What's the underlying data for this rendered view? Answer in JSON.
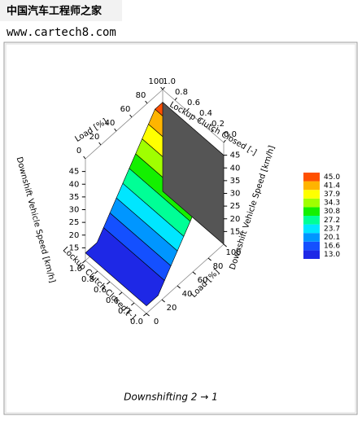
{
  "watermark": {
    "title": "中国汽车工程师之家",
    "url": "www.cartech8.com"
  },
  "chart_data": {
    "type": "surface3d",
    "caption": "Downshifting 2 → 1",
    "load_axis": {
      "title": "Load [%]",
      "lim": [
        0,
        100
      ],
      "ticks": [
        0,
        20,
        40,
        60,
        80,
        100
      ]
    },
    "lockup_axis": {
      "title": "Lockup Clutch Closed [-]",
      "lim": [
        0,
        1
      ],
      "ticks": [
        {
          "value": 1,
          "label": "1.0"
        },
        0.8,
        0.6,
        0.4,
        0.2,
        {
          "value": 0,
          "label": "0.0"
        }
      ]
    },
    "speed_axis": {
      "title": "Downshift Vehicle Speed [km/h]",
      "lim": [
        10,
        50
      ],
      "ticks": [
        15,
        20,
        25,
        30,
        35,
        40,
        45
      ]
    },
    "legend": {
      "values": [
        13.0,
        16.6,
        20.1,
        23.7,
        27.2,
        30.8,
        34.3,
        37.9,
        41.4,
        45.0
      ],
      "value_labels": [
        "13.0",
        "16.6",
        "20.1",
        "23.7",
        "27.2",
        "30.8",
        "34.3",
        "37.9",
        "41.4",
        "45.0"
      ],
      "colors": [
        "#1e28e6",
        "#1450ff",
        "#0096ff",
        "#00e6ff",
        "#00ff96",
        "#14f000",
        "#a0ff00",
        "#ffff00",
        "#ffb400",
        "#ff5000"
      ]
    }
  }
}
